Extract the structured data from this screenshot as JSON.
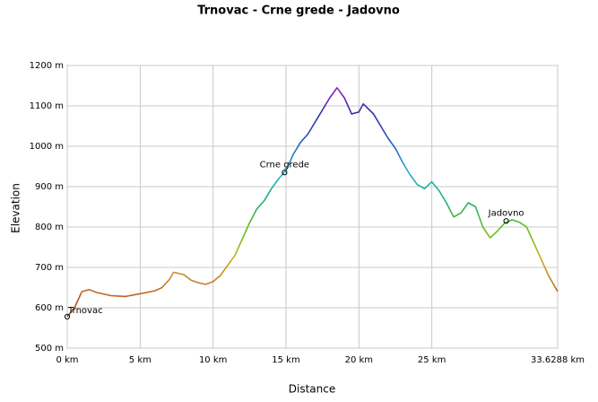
{
  "chart_data": {
    "type": "line",
    "title": "Trnovac - Crne grede - Jadovno",
    "x_label": "Distance",
    "y_label": "Elevation",
    "x": [
      0,
      0.5,
      1,
      1.5,
      2,
      3,
      4,
      5,
      6,
      6.5,
      7,
      7.3,
      8,
      8.5,
      9,
      9.5,
      10,
      10.5,
      11,
      11.5,
      12,
      12.5,
      13,
      13.5,
      14,
      14.5,
      15,
      15.5,
      16,
      16.5,
      17,
      17.5,
      18,
      18.5,
      19,
      19.5,
      20,
      20.3,
      21,
      21.5,
      22,
      22.5,
      23,
      23.5,
      24,
      24.5,
      25,
      25.5,
      26,
      26.5,
      27,
      27.5,
      28,
      28.5,
      29,
      29.5,
      30,
      30.5,
      31,
      31.5,
      32,
      33,
      33.6288
    ],
    "y": [
      578,
      600,
      640,
      645,
      638,
      630,
      628,
      635,
      642,
      650,
      670,
      688,
      682,
      668,
      662,
      658,
      665,
      680,
      705,
      730,
      770,
      810,
      845,
      865,
      895,
      920,
      940,
      980,
      1010,
      1030,
      1060,
      1090,
      1120,
      1145,
      1120,
      1080,
      1085,
      1105,
      1080,
      1050,
      1020,
      995,
      960,
      930,
      905,
      895,
      912,
      890,
      860,
      825,
      835,
      860,
      850,
      800,
      773,
      790,
      810,
      818,
      812,
      800,
      760,
      680,
      640
    ],
    "points": [
      {
        "label": "Trnovac",
        "x": 0,
        "y": 578
      },
      {
        "label": "Crne grede",
        "x": 14.9,
        "y": 935
      },
      {
        "label": "Jadovno",
        "x": 30.1,
        "y": 815
      }
    ],
    "xlim": [
      0,
      33.6288
    ],
    "ylim": [
      500,
      1200
    ],
    "xticks": [
      {
        "value": 0,
        "label": "0 km"
      },
      {
        "value": 5,
        "label": "5 km"
      },
      {
        "value": 10,
        "label": "10 km"
      },
      {
        "value": 15,
        "label": "15 km"
      },
      {
        "value": 20,
        "label": "20 km"
      },
      {
        "value": 25,
        "label": "25 km"
      },
      {
        "value": 33.6288,
        "label": "33.6288 km"
      }
    ],
    "yticks": [
      {
        "value": 500,
        "label": "500 m"
      },
      {
        "value": 600,
        "label": "600 m"
      },
      {
        "value": 700,
        "label": "700 m"
      },
      {
        "value": 800,
        "label": "800 m"
      },
      {
        "value": 900,
        "label": "900 m"
      },
      {
        "value": 1000,
        "label": "1000 m"
      },
      {
        "value": 1100,
        "label": "1100 m"
      },
      {
        "value": 1200,
        "label": "1200 m"
      }
    ],
    "grid": true
  }
}
